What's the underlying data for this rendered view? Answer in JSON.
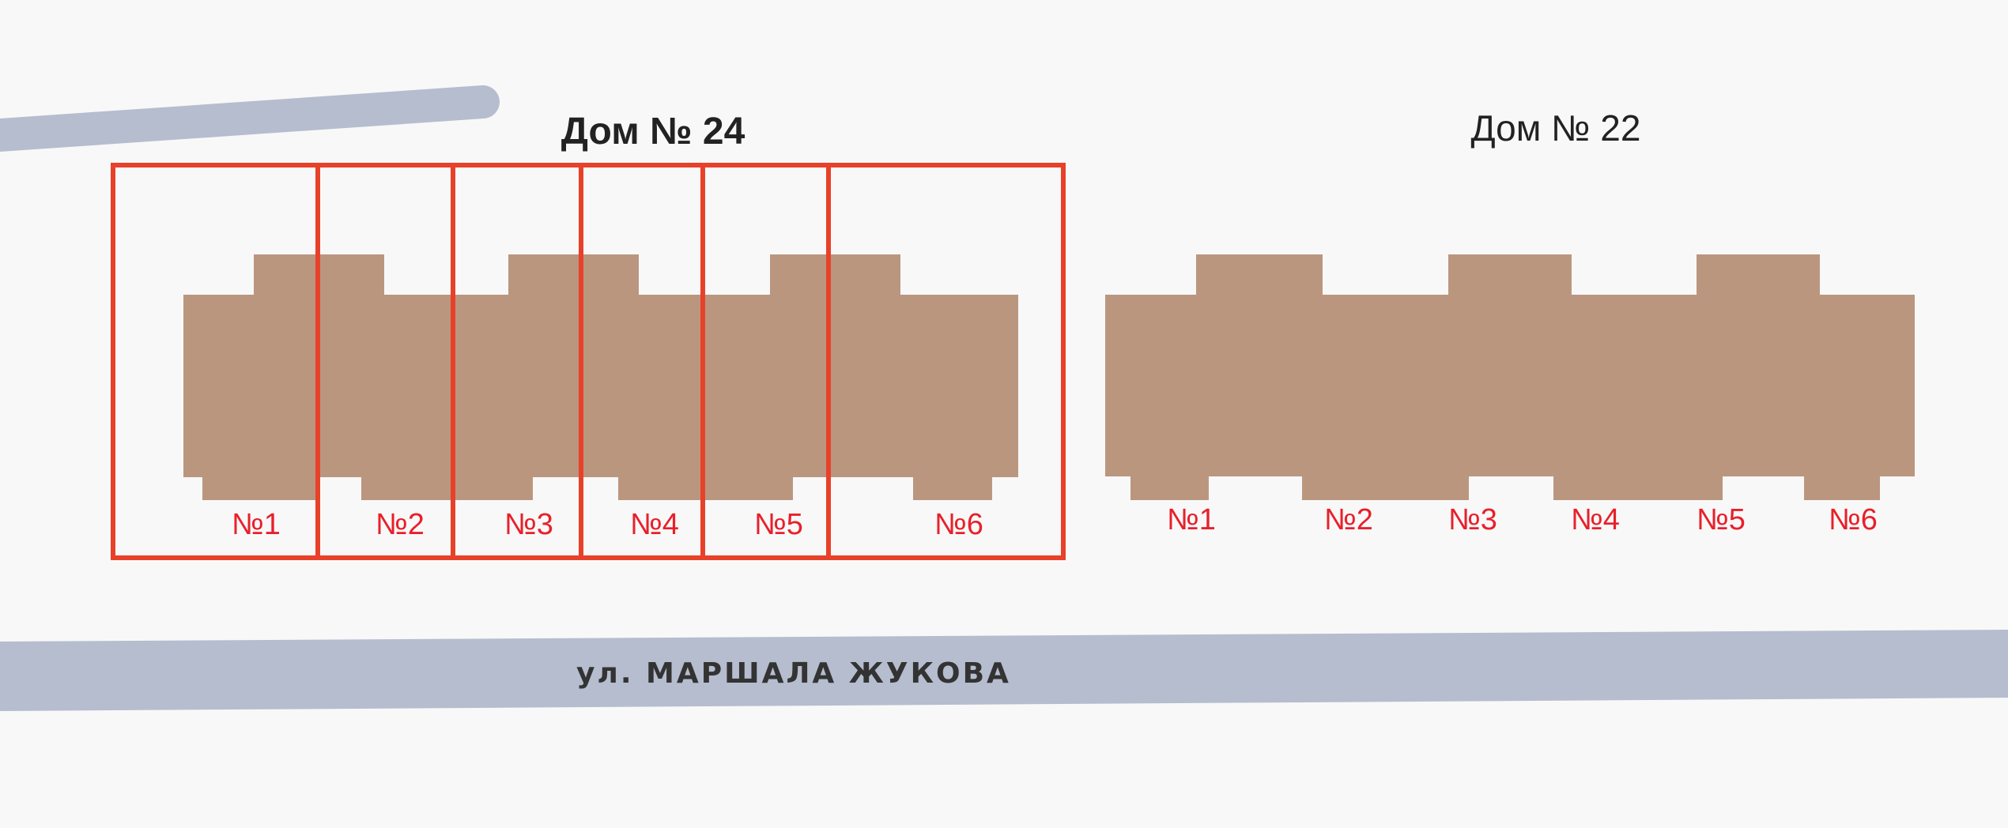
{
  "colors": {
    "background": "#f8f8f8",
    "building": "#bb967f",
    "frame": "#e8412a",
    "entrance_label": "#e8202a",
    "road": "#b5bdcf"
  },
  "house24": {
    "title": "Дом № 24",
    "entrances": [
      "№1",
      "№2",
      "№3",
      "№4",
      "№5",
      "№6"
    ]
  },
  "house22": {
    "title": "Дом № 22",
    "entrances": [
      "№1",
      "№2",
      "№3",
      "№4",
      "№5",
      "№6"
    ]
  },
  "street": {
    "name": "ул. МАРШАЛА ЖУКОВА"
  }
}
